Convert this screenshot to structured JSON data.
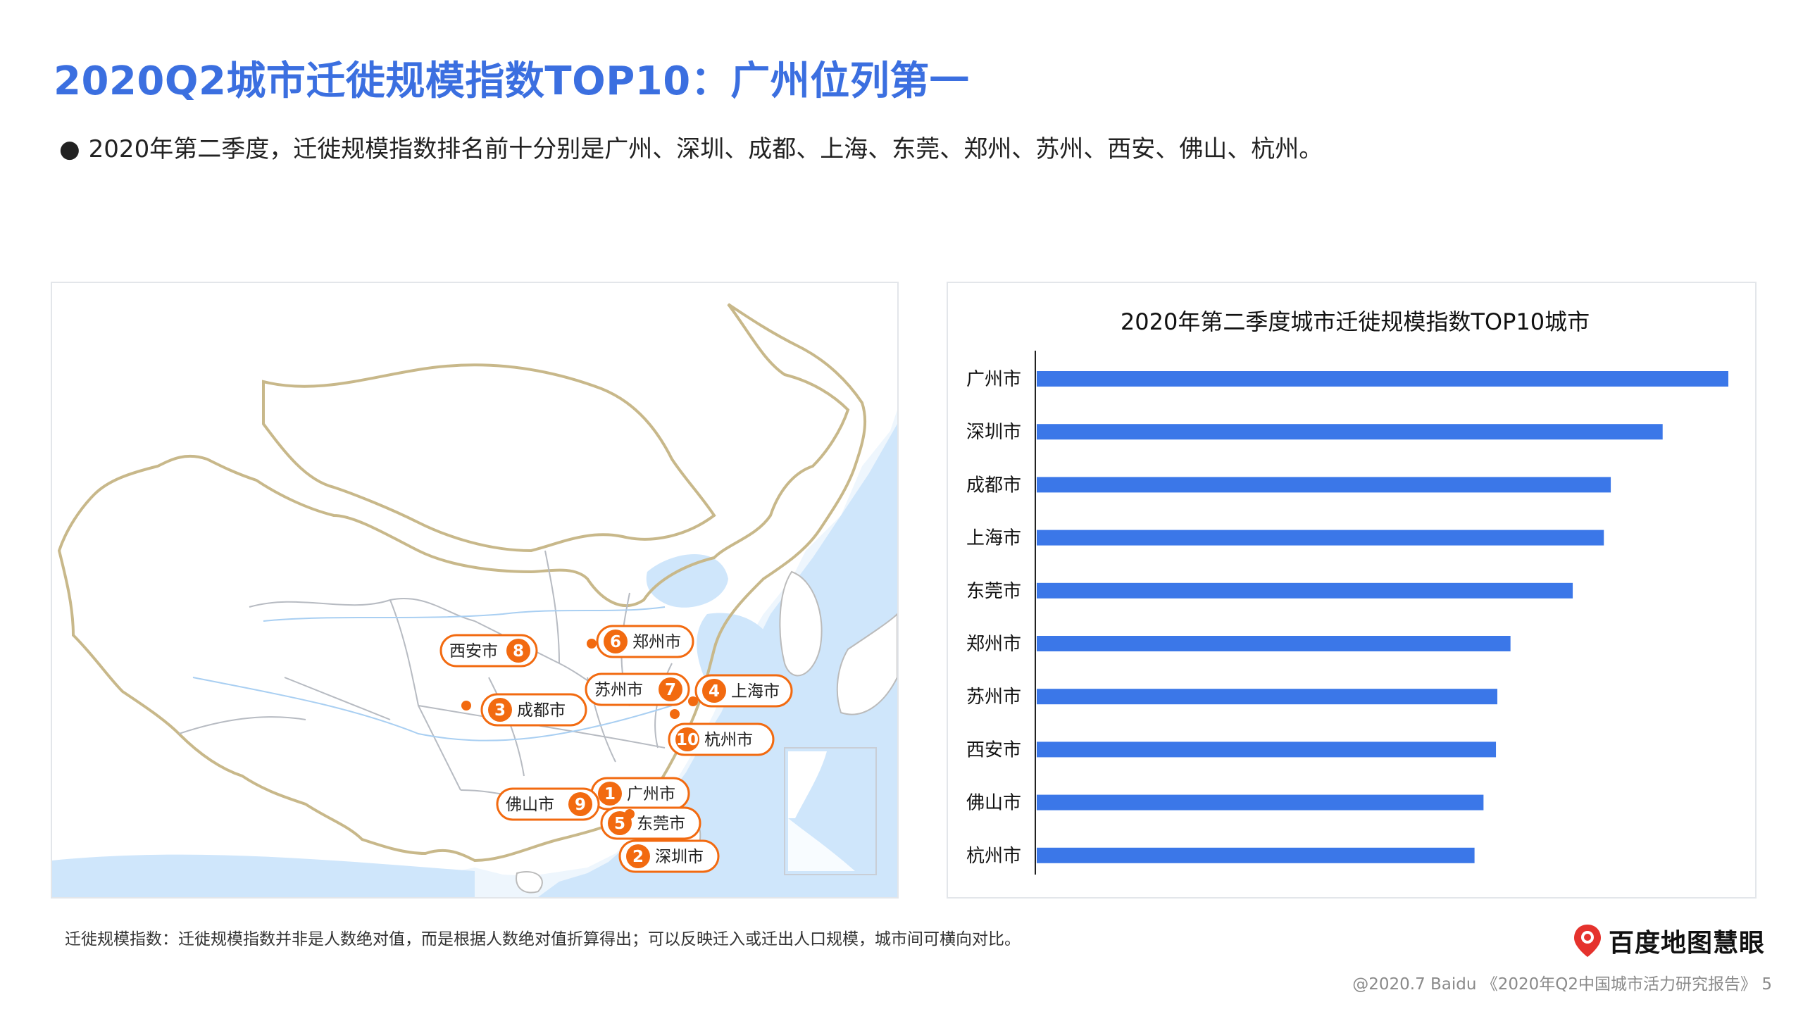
{
  "page": {
    "title": "2020Q2城市迁徙规模指数TOP10：广州位列第一",
    "summary": "2020年第二季度，迁徙规模指数排名前十分别是广州、深圳、成都、上海、东莞、郑州、苏州、西安、佛山、杭州。",
    "footnote": "迁徙规模指数：迁徙规模指数并非是人数绝对值，而是根据人数绝对值折算得出；可以反映迁入或迁出人口规模，城市间可横向对比。",
    "brand": "百度地图慧眼",
    "copyright": "@2020.7 Baidu 《2020年Q2中国城市活力研究报告》 5"
  },
  "colors": {
    "title": "#3b6fe0",
    "bar": "#3b77e8",
    "marker": "#f26a10",
    "land": "#ffffff",
    "sea": "#cfe6fb",
    "border": "#c8b88a"
  },
  "map": {
    "markers": [
      {
        "rank": "1",
        "city": "广州市"
      },
      {
        "rank": "2",
        "city": "深圳市"
      },
      {
        "rank": "3",
        "city": "成都市"
      },
      {
        "rank": "4",
        "city": "上海市"
      },
      {
        "rank": "5",
        "city": "东莞市"
      },
      {
        "rank": "6",
        "city": "郑州市"
      },
      {
        "rank": "7",
        "city": "苏州市"
      },
      {
        "rank": "8",
        "city": "西安市"
      },
      {
        "rank": "9",
        "city": "佛山市"
      },
      {
        "rank": "10",
        "city": "杭州市"
      }
    ]
  },
  "chart_data": {
    "type": "bar",
    "orientation": "horizontal",
    "title": "2020年第二季度城市迁徙规模指数TOP10城市",
    "categories": [
      "广州市",
      "深圳市",
      "成都市",
      "上海市",
      "东莞市",
      "郑州市",
      "苏州市",
      "西安市",
      "佛山市",
      "杭州市"
    ],
    "values": [
      100,
      90.5,
      83,
      82,
      77.5,
      68.5,
      66.6,
      66.4,
      64.6,
      63.3
    ],
    "xlim": [
      0,
      100
    ],
    "grid": false,
    "legend": "none"
  }
}
